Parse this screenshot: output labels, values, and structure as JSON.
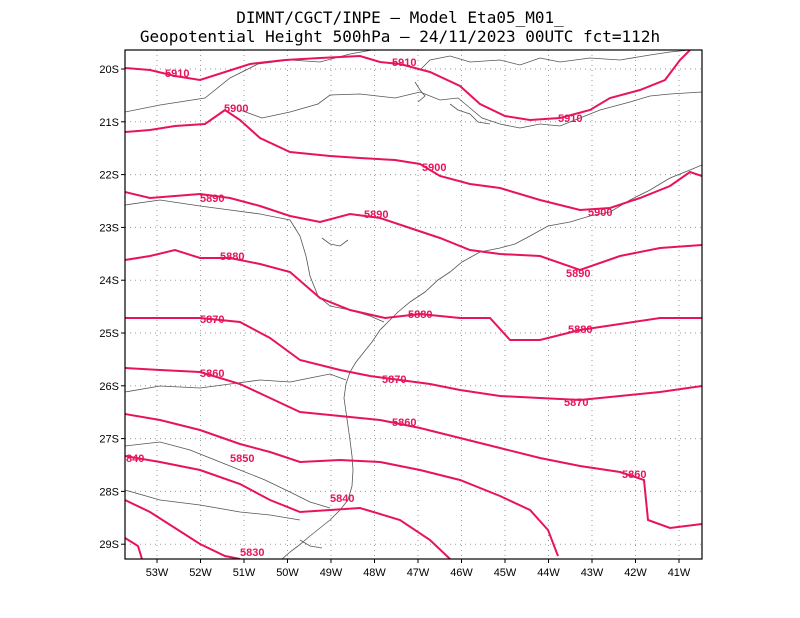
{
  "title_line1": "DIMNT/CGCT/INPE –   Model Eta05_M01_",
  "title_line2": "Geopotential Height 500hPa –  24/11/2023 00UTC fct=112h",
  "colors": {
    "contour": "#e8145a",
    "coast": "#555555",
    "grid": "#9a9a9a"
  },
  "lat_labels": [
    "20S",
    "21S",
    "22S",
    "23S",
    "24S",
    "25S",
    "26S",
    "27S",
    "28S",
    "29S"
  ],
  "lon_labels": [
    "53W",
    "52W",
    "51W",
    "50W",
    "49W",
    "48W",
    "47W",
    "46W",
    "45W",
    "44W",
    "43W",
    "42W",
    "41W"
  ],
  "contour_labels": [
    {
      "text": "5910",
      "id": "a"
    },
    {
      "text": "5910",
      "id": "b"
    },
    {
      "text": "5910",
      "id": "c"
    },
    {
      "text": "5900",
      "id": "d"
    },
    {
      "text": "5900",
      "id": "e"
    },
    {
      "text": "5900",
      "id": "f"
    },
    {
      "text": "5890",
      "id": "g"
    },
    {
      "text": "5890",
      "id": "h"
    },
    {
      "text": "5890",
      "id": "i"
    },
    {
      "text": "5880",
      "id": "j"
    },
    {
      "text": "5880",
      "id": "k"
    },
    {
      "text": "5880",
      "id": "l"
    },
    {
      "text": "5870",
      "id": "m"
    },
    {
      "text": "5870",
      "id": "n"
    },
    {
      "text": "5870",
      "id": "o"
    },
    {
      "text": "5860",
      "id": "p"
    },
    {
      "text": "5860",
      "id": "q"
    },
    {
      "text": "5860",
      "id": "r"
    },
    {
      "text": "5850",
      "id": "s"
    },
    {
      "text": "5840",
      "id": "t"
    },
    {
      "text": "5830",
      "id": "u"
    },
    {
      "text": "840",
      "id": "v"
    }
  ]
}
